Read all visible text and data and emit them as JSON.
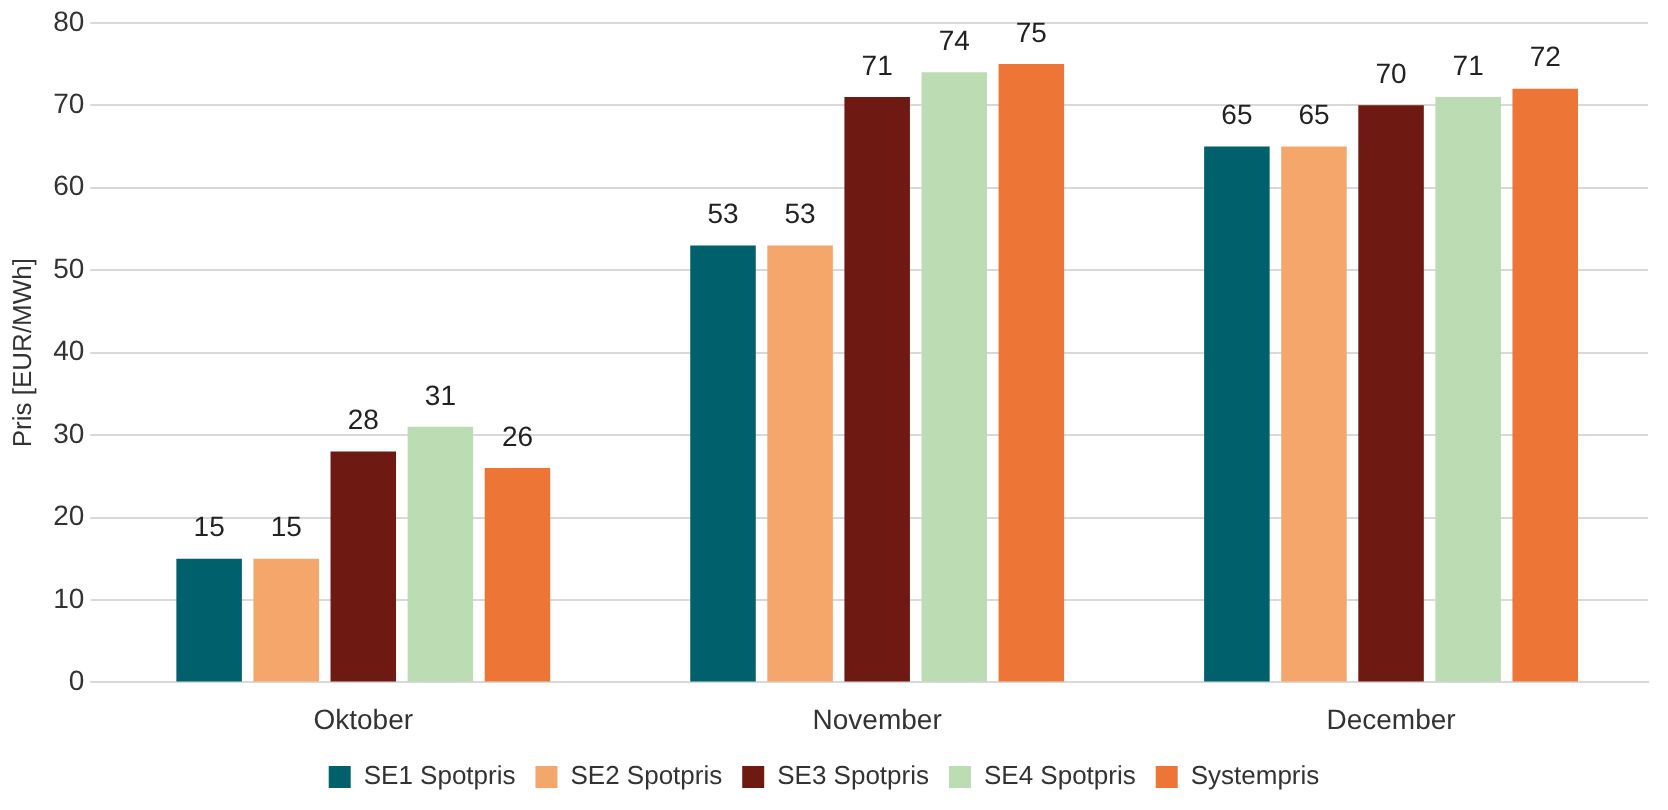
{
  "chart_data": {
    "type": "bar",
    "ylabel": "Pris [EUR/MWh]",
    "categories": [
      "Oktober",
      "November",
      "December"
    ],
    "series": [
      {
        "name": "SE1 Spotpris",
        "color": "#00606b",
        "values": [
          15,
          53,
          65
        ]
      },
      {
        "name": "SE2 Spotpris",
        "color": "#f5a66b",
        "values": [
          15,
          53,
          65
        ]
      },
      {
        "name": "SE3 Spotpris",
        "color": "#6e1a12",
        "values": [
          28,
          71,
          70
        ]
      },
      {
        "name": "SE4 Spotpris",
        "color": "#bcdcb3",
        "values": [
          31,
          74,
          71
        ]
      },
      {
        "name": "Systempris",
        "color": "#ed7535",
        "values": [
          26,
          75,
          72
        ]
      }
    ],
    "ylim": [
      0,
      80
    ],
    "yticks": [
      0,
      10,
      20,
      30,
      40,
      50,
      60,
      70,
      80
    ],
    "grid": "y",
    "legend": "bottom",
    "data_labels": true
  }
}
